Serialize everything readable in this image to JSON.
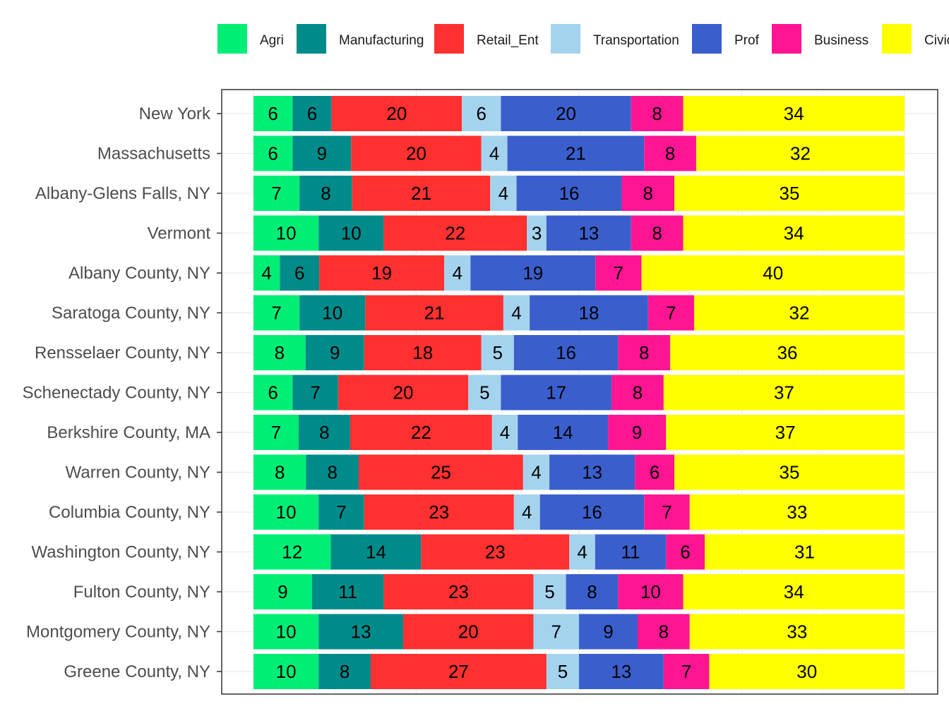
{
  "chart_data": {
    "type": "bar",
    "orientation": "horizontal",
    "stacked": true,
    "normalized": true,
    "xlim": [
      0,
      1
    ],
    "grid": true,
    "legend_position": "top",
    "categories": [
      "New York",
      "Massachusetts",
      "Albany-Glens Falls, NY",
      "Vermont",
      "Albany County, NY",
      "Saratoga County, NY",
      "Rensselaer County, NY",
      "Schenectady County, NY",
      "Berkshire County, MA",
      "Warren County, NY",
      "Columbia County, NY",
      "Washington County, NY",
      "Fulton County, NY",
      "Montgomery County, NY",
      "Greene County, NY"
    ],
    "series": [
      {
        "name": "Agri",
        "color": "#00EE76",
        "values": [
          6,
          6,
          7,
          10,
          4,
          7,
          8,
          6,
          7,
          8,
          10,
          12,
          9,
          10,
          10
        ]
      },
      {
        "name": "Manufacturing",
        "color": "#008B8B",
        "values": [
          6,
          9,
          8,
          10,
          6,
          10,
          9,
          7,
          8,
          8,
          7,
          14,
          11,
          13,
          8
        ]
      },
      {
        "name": "Retail_Ent",
        "color": "#FF3030",
        "values": [
          20,
          20,
          21,
          22,
          19,
          21,
          18,
          20,
          22,
          25,
          23,
          23,
          23,
          20,
          27
        ]
      },
      {
        "name": "Transportation",
        "color": "#A4D3EE",
        "values": [
          6,
          4,
          4,
          3,
          4,
          4,
          5,
          5,
          4,
          4,
          4,
          4,
          5,
          7,
          5
        ]
      },
      {
        "name": "Prof",
        "color": "#3A5FCD",
        "values": [
          20,
          21,
          16,
          13,
          19,
          18,
          16,
          17,
          14,
          13,
          16,
          11,
          8,
          9,
          13
        ]
      },
      {
        "name": "Business",
        "color": "#FF1493",
        "values": [
          8,
          8,
          8,
          8,
          7,
          7,
          8,
          8,
          9,
          6,
          7,
          6,
          10,
          8,
          7
        ]
      },
      {
        "name": "Civic",
        "color": "#FFFF00",
        "values": [
          34,
          32,
          35,
          34,
          40,
          32,
          36,
          37,
          37,
          35,
          33,
          31,
          34,
          33,
          30
        ]
      }
    ]
  }
}
